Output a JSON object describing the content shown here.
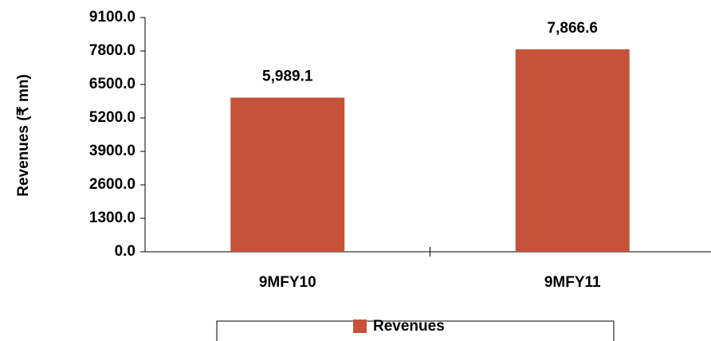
{
  "chart_data": {
    "type": "bar",
    "y_label": "Revenues (₹ mn)",
    "categories": [
      "9MFY10",
      "9MFY11"
    ],
    "series": [
      {
        "name": "Revenues",
        "color": "#c5533a",
        "values": [
          5989.1,
          7866.6
        ],
        "value_labels": [
          "5,989.1",
          "7,866.6"
        ]
      }
    ],
    "ylim": [
      0,
      9100
    ],
    "yticks": [
      {
        "value": 0,
        "label": "0.0"
      },
      {
        "value": 1300,
        "label": "1300.0"
      },
      {
        "value": 2600,
        "label": "2600.0"
      },
      {
        "value": 3900,
        "label": "3900.0"
      },
      {
        "value": 5200,
        "label": "5200.0"
      },
      {
        "value": 6500,
        "label": "6500.0"
      },
      {
        "value": 7800,
        "label": "7800.0"
      },
      {
        "value": 9100,
        "label": "9100.0"
      }
    ],
    "legend": "bottom",
    "grid": false
  }
}
